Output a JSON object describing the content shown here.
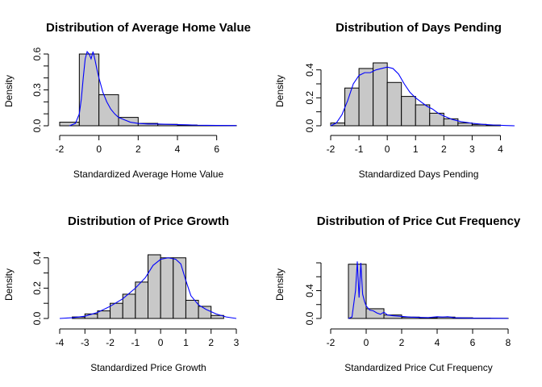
{
  "chart_data": [
    {
      "type": "histogram",
      "title": "Distribution of Average Home Value",
      "xlabel": "Standardized Average Home Value",
      "ylabel": "Density",
      "xlim": [
        -2,
        7
      ],
      "ylim": [
        0,
        0.6
      ],
      "xticks": [
        -2,
        0,
        2,
        4,
        6
      ],
      "yticks": [
        0.0,
        0.1,
        0.2,
        0.3,
        0.4,
        0.5,
        0.6
      ],
      "ytick_labels": {
        "0": "0.0",
        "3": "0.3",
        "6": "0.6"
      },
      "bins": [
        {
          "x0": -2.0,
          "x1": -1.0,
          "density": 0.03
        },
        {
          "x0": -1.0,
          "x1": 0.0,
          "density": 0.6
        },
        {
          "x0": 0.0,
          "x1": 1.0,
          "density": 0.26
        },
        {
          "x0": 1.0,
          "x1": 2.0,
          "density": 0.07
        },
        {
          "x0": 2.0,
          "x1": 3.0,
          "density": 0.02
        },
        {
          "x0": 3.0,
          "x1": 4.0,
          "density": 0.012
        },
        {
          "x0": 4.0,
          "x1": 5.0,
          "density": 0.006
        },
        {
          "x0": 5.0,
          "x1": 6.0,
          "density": 0.003
        },
        {
          "x0": 6.0,
          "x1": 7.0,
          "density": 0.002
        }
      ],
      "density_line": {
        "color": "#0000ff",
        "x": [
          -1.5,
          -1.2,
          -1.0,
          -0.9,
          -0.8,
          -0.7,
          -0.6,
          -0.5,
          -0.4,
          -0.3,
          -0.2,
          -0.1,
          0.0,
          0.2,
          0.4,
          0.6,
          0.8,
          1.0,
          1.3,
          1.6,
          2.0,
          2.5,
          3.0,
          3.5,
          4.0,
          4.5,
          5.0,
          5.5,
          6.0,
          6.5,
          7.0
        ],
        "y": [
          0.0,
          0.02,
          0.1,
          0.22,
          0.4,
          0.56,
          0.62,
          0.6,
          0.56,
          0.62,
          0.55,
          0.47,
          0.4,
          0.28,
          0.2,
          0.14,
          0.1,
          0.07,
          0.05,
          0.03,
          0.02,
          0.015,
          0.015,
          0.012,
          0.01,
          0.008,
          0.005,
          0.004,
          0.003,
          0.002,
          0.001
        ]
      }
    },
    {
      "type": "histogram",
      "title": "Distribution of Days Pending",
      "xlabel": "Standardized Days Pending",
      "ylabel": "Density",
      "xlim": [
        -2,
        4.5
      ],
      "ylim": [
        0,
        0.45
      ],
      "xticks": [
        -2,
        -1,
        0,
        1,
        2,
        3,
        4
      ],
      "yticks": [
        0.0,
        0.1,
        0.2,
        0.3,
        0.4
      ],
      "ytick_labels": {
        "0": "0.0",
        "2": "0.2",
        "4": "0.4"
      },
      "bins": [
        {
          "x0": -2.0,
          "x1": -1.5,
          "density": 0.02
        },
        {
          "x0": -1.5,
          "x1": -1.0,
          "density": 0.27
        },
        {
          "x0": -1.0,
          "x1": -0.5,
          "density": 0.41
        },
        {
          "x0": -0.5,
          "x1": 0.0,
          "density": 0.45
        },
        {
          "x0": 0.0,
          "x1": 0.5,
          "density": 0.31
        },
        {
          "x0": 0.5,
          "x1": 1.0,
          "density": 0.21
        },
        {
          "x0": 1.0,
          "x1": 1.5,
          "density": 0.15
        },
        {
          "x0": 1.5,
          "x1": 2.0,
          "density": 0.09
        },
        {
          "x0": 2.0,
          "x1": 2.5,
          "density": 0.05
        },
        {
          "x0": 2.5,
          "x1": 3.0,
          "density": 0.02
        },
        {
          "x0": 3.0,
          "x1": 3.5,
          "density": 0.01
        },
        {
          "x0": 3.5,
          "x1": 4.0,
          "density": 0.005
        }
      ],
      "density_line": {
        "color": "#0000ff",
        "x": [
          -2.0,
          -1.8,
          -1.6,
          -1.4,
          -1.2,
          -1.0,
          -0.8,
          -0.6,
          -0.4,
          -0.2,
          0.0,
          0.2,
          0.4,
          0.6,
          0.8,
          1.0,
          1.2,
          1.4,
          1.6,
          1.8,
          2.0,
          2.3,
          2.6,
          3.0,
          3.4,
          3.8,
          4.2,
          4.5
        ],
        "y": [
          0.0,
          0.02,
          0.08,
          0.18,
          0.3,
          0.36,
          0.38,
          0.38,
          0.4,
          0.41,
          0.42,
          0.41,
          0.37,
          0.3,
          0.24,
          0.2,
          0.17,
          0.14,
          0.12,
          0.09,
          0.07,
          0.045,
          0.03,
          0.018,
          0.01,
          0.005,
          0.002,
          0.0
        ]
      }
    },
    {
      "type": "histogram",
      "title": "Distribution of Price Growth",
      "xlabel": "Standardized Price Growth",
      "ylabel": "Density",
      "xlim": [
        -4,
        3
      ],
      "ylim": [
        0,
        0.42
      ],
      "xticks": [
        -4,
        -3,
        -2,
        -1,
        0,
        1,
        2,
        3
      ],
      "yticks": [
        0.0,
        0.1,
        0.2,
        0.3,
        0.4
      ],
      "ytick_labels": {
        "0": "0.0",
        "2": "0.2",
        "4": "0.4"
      },
      "bins": [
        {
          "x0": -3.5,
          "x1": -3.0,
          "density": 0.01
        },
        {
          "x0": -3.0,
          "x1": -2.5,
          "density": 0.03
        },
        {
          "x0": -2.5,
          "x1": -2.0,
          "density": 0.05
        },
        {
          "x0": -2.0,
          "x1": -1.5,
          "density": 0.1
        },
        {
          "x0": -1.5,
          "x1": -1.0,
          "density": 0.16
        },
        {
          "x0": -1.0,
          "x1": -0.5,
          "density": 0.24
        },
        {
          "x0": -0.5,
          "x1": 0.0,
          "density": 0.42
        },
        {
          "x0": 0.0,
          "x1": 0.5,
          "density": 0.4
        },
        {
          "x0": 0.5,
          "x1": 1.0,
          "density": 0.4
        },
        {
          "x0": 1.0,
          "x1": 1.5,
          "density": 0.12
        },
        {
          "x0": 1.5,
          "x1": 2.0,
          "density": 0.08
        },
        {
          "x0": 2.0,
          "x1": 2.5,
          "density": 0.02
        }
      ],
      "density_line": {
        "color": "#0000ff",
        "x": [
          -4.0,
          -3.5,
          -3.0,
          -2.5,
          -2.0,
          -1.5,
          -1.0,
          -0.6,
          -0.3,
          0.0,
          0.3,
          0.6,
          0.8,
          1.0,
          1.2,
          1.5,
          1.8,
          2.2,
          2.6,
          3.0
        ],
        "y": [
          0.0,
          0.005,
          0.015,
          0.04,
          0.08,
          0.13,
          0.2,
          0.27,
          0.35,
          0.39,
          0.4,
          0.39,
          0.36,
          0.25,
          0.15,
          0.09,
          0.06,
          0.03,
          0.01,
          0.0
        ]
      }
    },
    {
      "type": "histogram",
      "title": "Distribution of Price Cut Frequency",
      "xlabel": "Standardized Price Cut Frequency",
      "ylabel": "Density",
      "xlim": [
        -2,
        8
      ],
      "ylim": [
        0,
        0.8
      ],
      "xticks": [
        -2,
        0,
        2,
        4,
        6,
        8
      ],
      "yticks": [
        0.0,
        0.2,
        0.4,
        0.6,
        0.8
      ],
      "ytick_labels": {
        "0": "0.0",
        "2": "0.4"
      },
      "bins": [
        {
          "x0": -2.0,
          "x1": -1.0,
          "density": 0.0
        },
        {
          "x0": -1.0,
          "x1": 0.0,
          "density": 0.78
        },
        {
          "x0": 0.0,
          "x1": 1.0,
          "density": 0.14
        },
        {
          "x0": 1.0,
          "x1": 2.0,
          "density": 0.05
        },
        {
          "x0": 2.0,
          "x1": 3.0,
          "density": 0.02
        },
        {
          "x0": 3.0,
          "x1": 4.0,
          "density": 0.01
        },
        {
          "x0": 4.0,
          "x1": 5.0,
          "density": 0.02
        },
        {
          "x0": 5.0,
          "x1": 6.0,
          "density": 0.01
        },
        {
          "x0": 6.0,
          "x1": 7.0,
          "density": 0.005
        },
        {
          "x0": 7.0,
          "x1": 8.0,
          "density": 0.003
        }
      ],
      "density_line": {
        "color": "#0000ff",
        "x": [
          -1.0,
          -0.8,
          -0.6,
          -0.5,
          -0.4,
          -0.3,
          -0.2,
          -0.1,
          0.0,
          0.2,
          0.4,
          0.6,
          0.8,
          1.0,
          1.2,
          1.5,
          2.0,
          2.5,
          3.0,
          3.5,
          4.0,
          4.3,
          4.6,
          5.0,
          5.5,
          6.0,
          6.5,
          7.0,
          7.5,
          8.0
        ],
        "y": [
          0.0,
          0.02,
          0.4,
          0.82,
          0.3,
          0.8,
          0.35,
          0.25,
          0.18,
          0.12,
          0.11,
          0.08,
          0.06,
          0.09,
          0.05,
          0.04,
          0.03,
          0.02,
          0.015,
          0.012,
          0.025,
          0.02,
          0.025,
          0.01,
          0.006,
          0.004,
          0.003,
          0.002,
          0.001,
          0.0
        ]
      }
    }
  ]
}
